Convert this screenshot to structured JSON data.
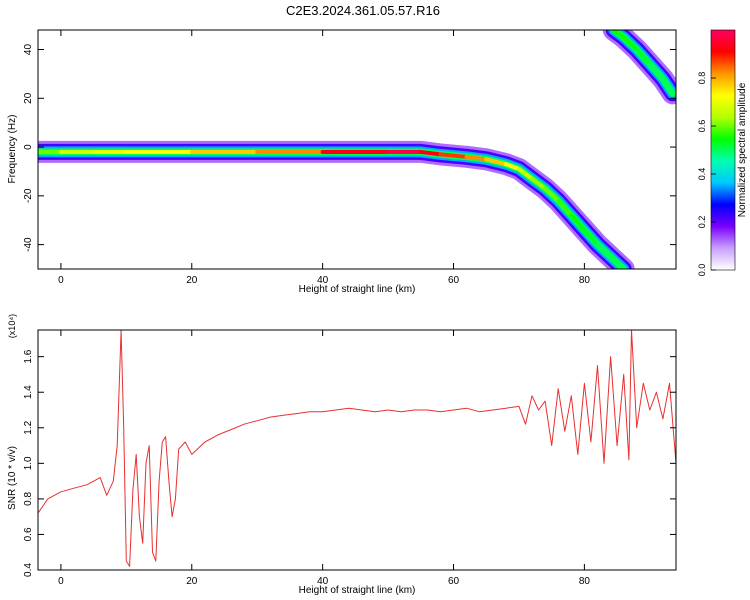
{
  "title": "C2E3.2024.361.05.57.R16",
  "chart_data": [
    {
      "type": "heatmap",
      "xlabel": "Height of straight line (km)",
      "ylabel": "Frequency (Hz)",
      "xlim": [
        -3.5,
        94
      ],
      "ylim": [
        -50,
        48
      ],
      "xticks": [
        0,
        20,
        40,
        60,
        80
      ],
      "yticks": [
        -40,
        -20,
        0,
        20,
        40
      ],
      "colorbar": {
        "label": "Normalized spectral amplitude",
        "range": [
          0,
          1
        ],
        "ticks": [
          "0.0",
          "0.2",
          "0.4",
          "0.6",
          "0.8"
        ],
        "colors": [
          "#ffffff",
          "#c8a0ff",
          "#7a00ff",
          "#0000ff",
          "#00c8ff",
          "#00ffb0",
          "#00ff00",
          "#b4ff00",
          "#ffff00",
          "#ff9600",
          "#ff0000",
          "#ff0064"
        ]
      },
      "ridge": {
        "height_km": [
          -3.5,
          0,
          5,
          10,
          20,
          30,
          40,
          50,
          55,
          58,
          62,
          65,
          68,
          70,
          72,
          74,
          76,
          78,
          80,
          82,
          84,
          86
        ],
        "frequency_hz": [
          -2,
          -2,
          -2,
          -2,
          -2,
          -2,
          -2,
          -2,
          -2,
          -3,
          -4,
          -5,
          -7,
          -9,
          -13,
          -17,
          -22,
          -28,
          -34,
          -40,
          -45,
          -50
        ],
        "amplitude": [
          0.55,
          0.65,
          0.7,
          0.7,
          0.75,
          0.8,
          0.85,
          1.0,
          0.95,
          0.9,
          0.85,
          0.8,
          0.75,
          0.7,
          0.65,
          0.6,
          0.6,
          0.55,
          0.55,
          0.5,
          0.5,
          0.5
        ]
      },
      "ridge_aliased": {
        "height_km": [
          84.5,
          86,
          88,
          90,
          92,
          93.5
        ],
        "frequency_hz": [
          48,
          45,
          40,
          34,
          28,
          22
        ],
        "amplitude": [
          0.55,
          0.55,
          0.55,
          0.5,
          0.5,
          0.5
        ]
      }
    },
    {
      "type": "line",
      "xlabel": "Height of straight line (km)",
      "ylabel": "SNR (10 * v/v)",
      "multiplier": "(x10⁴)",
      "xlim": [
        -3.5,
        94
      ],
      "ylim": [
        0.4,
        1.75
      ],
      "xticks": [
        0,
        20,
        40,
        60,
        80
      ],
      "yticks": [
        0.4,
        0.6,
        0.8,
        1.0,
        1.2,
        1.4,
        1.6
      ],
      "color": "#e83030",
      "x": [
        -3.5,
        -2,
        0,
        2,
        4,
        6,
        7,
        8,
        8.6,
        9.2,
        9.6,
        10,
        10.5,
        11,
        11.5,
        12,
        12.5,
        13,
        13.5,
        14,
        14.5,
        15,
        15.5,
        16,
        16.5,
        17,
        17.5,
        18,
        19,
        20,
        22,
        24,
        26,
        28,
        30,
        32,
        34,
        36,
        38,
        40,
        42,
        44,
        46,
        48,
        50,
        52,
        54,
        56,
        58,
        60,
        62,
        64,
        66,
        68,
        70,
        71,
        72,
        73,
        74,
        75,
        76,
        77,
        78,
        79,
        80,
        81,
        82,
        83,
        84,
        85,
        86,
        86.8,
        87.2,
        88,
        89,
        90,
        91,
        92,
        93,
        94
      ],
      "values": [
        0.72,
        0.8,
        0.84,
        0.86,
        0.88,
        0.92,
        0.82,
        0.9,
        1.1,
        1.75,
        1.2,
        0.45,
        0.42,
        0.85,
        1.05,
        0.7,
        0.55,
        1.0,
        1.1,
        0.5,
        0.45,
        0.9,
        1.12,
        1.15,
        0.9,
        0.7,
        0.8,
        1.08,
        1.12,
        1.05,
        1.12,
        1.16,
        1.19,
        1.22,
        1.24,
        1.26,
        1.27,
        1.28,
        1.29,
        1.29,
        1.3,
        1.31,
        1.3,
        1.29,
        1.3,
        1.29,
        1.3,
        1.3,
        1.29,
        1.3,
        1.31,
        1.29,
        1.3,
        1.31,
        1.32,
        1.22,
        1.38,
        1.3,
        1.35,
        1.1,
        1.42,
        1.18,
        1.38,
        1.05,
        1.45,
        1.12,
        1.55,
        1.0,
        1.6,
        1.1,
        1.5,
        1.02,
        1.75,
        1.2,
        1.45,
        1.3,
        1.4,
        1.25,
        1.45,
        1.0
      ]
    }
  ]
}
